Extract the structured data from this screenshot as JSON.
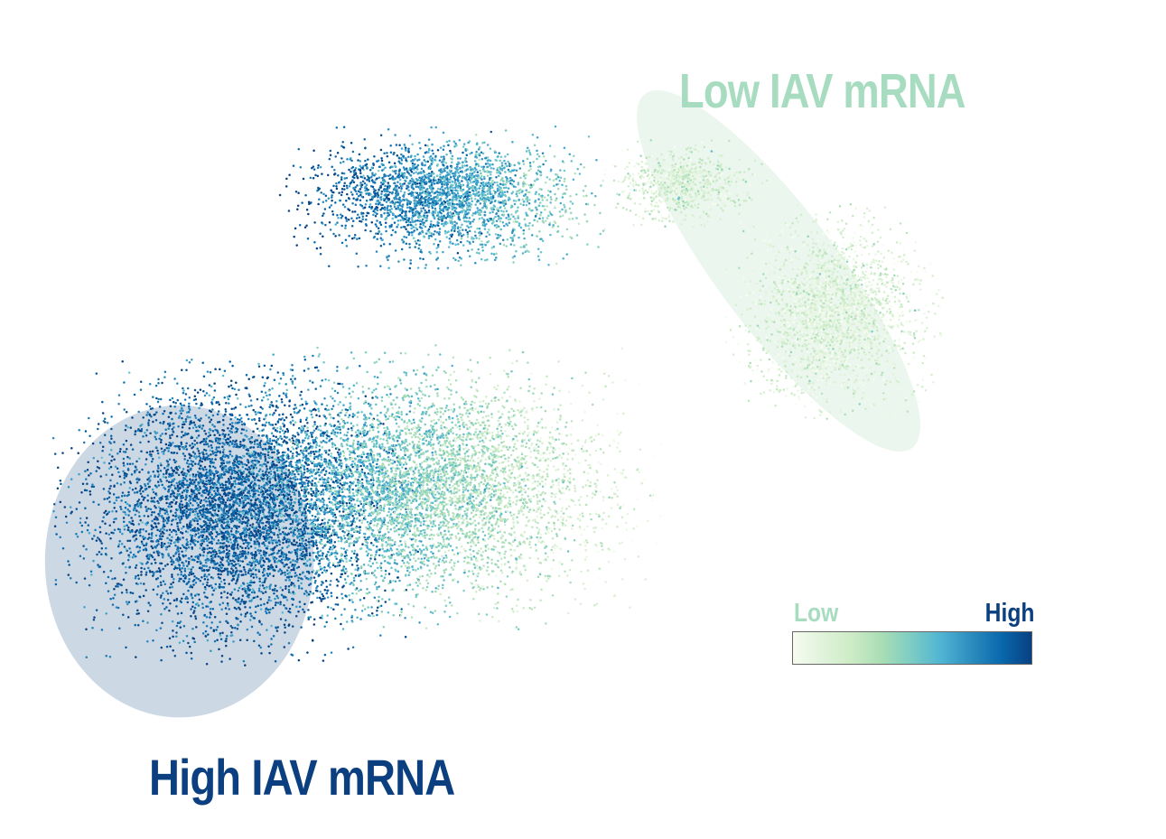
{
  "annotations": {
    "low": "Low IAV mRNA",
    "high": "High IAV mRNA"
  },
  "colors": {
    "low": "#a8dcc0",
    "high": "#0b3f7f",
    "high_region_fill": "#cdd8e5",
    "low_region_fill": "#ebf6ee",
    "colormap": [
      "#f7fcf0",
      "#e0f3db",
      "#ccebc5",
      "#a8ddb5",
      "#7bccc4",
      "#4eb3d3",
      "#2b8cbe",
      "#0868ac",
      "#084081"
    ]
  },
  "chart_data": {
    "type": "scatter",
    "title": "",
    "xlabel": "",
    "ylabel": "",
    "grid": false,
    "axes_visible": false,
    "colorbar": {
      "low_label": "Low",
      "high_label": "High",
      "placement": "right-lower"
    },
    "clusters": [
      {
        "center": [
          -0.62,
          -0.3
        ],
        "spread": [
          0.22,
          0.24
        ],
        "expression": 0.9,
        "points": 5200
      },
      {
        "center": [
          -0.28,
          -0.25
        ],
        "spread": [
          0.28,
          0.22
        ],
        "expression": 0.45,
        "points": 5200
      },
      {
        "center": [
          -0.25,
          0.42
        ],
        "spread": [
          0.2,
          0.11
        ],
        "expression": 0.7,
        "points": 2600
      },
      {
        "center": [
          0.18,
          0.45
        ],
        "spread": [
          0.1,
          0.07
        ],
        "expression": 0.18,
        "points": 800
      },
      {
        "center": [
          0.45,
          0.15
        ],
        "spread": [
          0.13,
          0.17
        ],
        "expression": 0.14,
        "points": 2400
      }
    ],
    "highlight_regions": [
      {
        "label": "High IAV mRNA",
        "center": [
          -0.72,
          -0.42
        ],
        "radius": [
          0.24,
          0.36
        ]
      },
      {
        "label": "Low IAV mRNA",
        "center": [
          0.35,
          0.25
        ],
        "radius": [
          0.44,
          0.12
        ],
        "rotation": -53
      }
    ]
  }
}
